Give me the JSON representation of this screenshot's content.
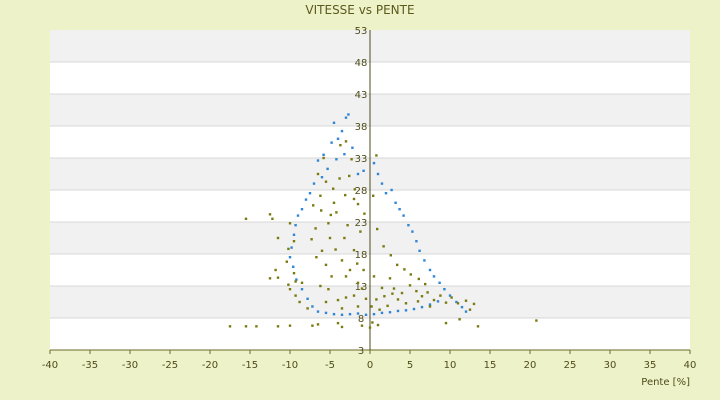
{
  "chart_data": {
    "type": "scatter",
    "title": "VITESSE vs PENTE",
    "xlabel": "Pente [%]",
    "ylabel": "",
    "xlim": [
      -40,
      40
    ],
    "ylim": [
      3,
      53
    ],
    "x_ticks": [
      -40,
      -35,
      -30,
      -25,
      -20,
      -15,
      -10,
      -5,
      0,
      5,
      10,
      15,
      20,
      25,
      30,
      35,
      40
    ],
    "y_ticks": [
      3,
      8,
      13,
      18,
      23,
      28,
      33,
      38,
      43,
      48,
      53
    ],
    "grid": "horizontal alternating bands",
    "legend": "none",
    "series": [
      {
        "color": "#2f86d6",
        "points": [
          [
            -4.5,
            38.5
          ],
          [
            -3.5,
            37.2
          ],
          [
            -3,
            39.3
          ],
          [
            -2.7,
            39.8
          ],
          [
            -4,
            36
          ],
          [
            -4.8,
            35.4
          ],
          [
            -5.8,
            33.5
          ],
          [
            -6.5,
            32.6
          ],
          [
            -6,
            30
          ],
          [
            -5.3,
            31.3
          ],
          [
            -4.2,
            32.8
          ],
          [
            -3.2,
            33.6
          ],
          [
            -2.2,
            34.6
          ],
          [
            -1.5,
            30.5
          ],
          [
            -0.8,
            31
          ],
          [
            0.5,
            32.2
          ],
          [
            1,
            30.5
          ],
          [
            1.5,
            29
          ],
          [
            2,
            27.5
          ],
          [
            2.7,
            28
          ],
          [
            3.2,
            26
          ],
          [
            3.7,
            25
          ],
          [
            4.2,
            24
          ],
          [
            4.8,
            22.5
          ],
          [
            5.3,
            21.5
          ],
          [
            5.8,
            20
          ],
          [
            6.2,
            18.5
          ],
          [
            6.8,
            17
          ],
          [
            7.5,
            15.5
          ],
          [
            8,
            14.5
          ],
          [
            8.7,
            13.5
          ],
          [
            9.3,
            12.5
          ],
          [
            10,
            11.5
          ],
          [
            10.8,
            10.5
          ],
          [
            11.5,
            9.7
          ],
          [
            12,
            9
          ],
          [
            -7,
            29
          ],
          [
            -7.5,
            27.5
          ],
          [
            -8,
            26.5
          ],
          [
            -8.5,
            25
          ],
          [
            -9,
            24
          ],
          [
            -9.3,
            22.5
          ],
          [
            -9.5,
            21
          ],
          [
            -9.8,
            19
          ],
          [
            -10,
            17.5
          ],
          [
            -9.6,
            16
          ],
          [
            -9.2,
            14
          ],
          [
            -8.5,
            12.5
          ],
          [
            -7.8,
            11
          ],
          [
            -7.2,
            9.8
          ],
          [
            -6.5,
            9
          ],
          [
            -5.5,
            8.8
          ],
          [
            -4.5,
            8.6
          ],
          [
            -3.5,
            8.5
          ],
          [
            -2.5,
            8.6
          ],
          [
            -1.5,
            8.7
          ],
          [
            -0.5,
            8.5
          ],
          [
            0.5,
            8.6
          ],
          [
            1.5,
            8.8
          ],
          [
            2.5,
            8.9
          ],
          [
            3.5,
            9.1
          ],
          [
            4.5,
            9.2
          ],
          [
            5.5,
            9.4
          ],
          [
            6.5,
            9.7
          ],
          [
            7.5,
            10.1
          ],
          [
            8.5,
            10.6
          ]
        ]
      },
      {
        "color": "#7a7a10",
        "points": [
          [
            -15.5,
            23.5
          ],
          [
            -12.5,
            24.2
          ],
          [
            -12.2,
            23.5
          ],
          [
            -10,
            22.8
          ],
          [
            -9.5,
            20
          ],
          [
            -11.5,
            20.5
          ],
          [
            -10.2,
            18.8
          ],
          [
            -10.4,
            16.8
          ],
          [
            -11.8,
            15.5
          ],
          [
            -11.5,
            14.3
          ],
          [
            -9.5,
            15
          ],
          [
            -9.3,
            13.7
          ],
          [
            -12.5,
            14.2
          ],
          [
            -10,
            12.5
          ],
          [
            -9.3,
            11.5
          ],
          [
            -10.2,
            13.2
          ],
          [
            -8.5,
            13.5
          ],
          [
            -8.8,
            10.5
          ],
          [
            -7.8,
            9.5
          ],
          [
            -17.5,
            6.7
          ],
          [
            -15.5,
            6.7
          ],
          [
            -14.2,
            6.7
          ],
          [
            -11.5,
            6.7
          ],
          [
            -10,
            6.8
          ],
          [
            -7.2,
            6.8
          ],
          [
            -6.5,
            7
          ],
          [
            -4,
            7.2
          ],
          [
            -3.5,
            6.6
          ],
          [
            -1,
            6.8
          ],
          [
            0,
            6.5
          ],
          [
            0.3,
            7.3
          ],
          [
            1,
            6.9
          ],
          [
            9.5,
            7.2
          ],
          [
            11.2,
            7.8
          ],
          [
            13.5,
            6.7
          ],
          [
            20.8,
            7.6
          ],
          [
            -6.5,
            30.5
          ],
          [
            -5.5,
            29.3
          ],
          [
            -5.8,
            33
          ],
          [
            -3,
            35.6
          ],
          [
            -2.3,
            32.8
          ],
          [
            -3.7,
            35
          ],
          [
            0.8,
            33.4
          ],
          [
            -1.5,
            25.8
          ],
          [
            -2,
            26.6
          ],
          [
            -4.5,
            26
          ],
          [
            -4.2,
            24.5
          ],
          [
            -5,
            20.5
          ],
          [
            -6,
            18.5
          ],
          [
            -6.7,
            17.5
          ],
          [
            -5.5,
            16.3
          ],
          [
            -3.5,
            17
          ],
          [
            -2,
            18.6
          ],
          [
            -4.8,
            14.5
          ],
          [
            -6.2,
            13
          ],
          [
            -5.2,
            12.5
          ],
          [
            -3,
            14.5
          ],
          [
            -1.5,
            13.5
          ],
          [
            -1,
            12.6
          ],
          [
            0.5,
            14.5
          ],
          [
            1.5,
            12.7
          ],
          [
            2.5,
            14.2
          ],
          [
            3,
            12.6
          ],
          [
            4,
            11.9
          ],
          [
            5,
            13.1
          ],
          [
            5.8,
            12.2
          ],
          [
            6.5,
            11.4
          ],
          [
            7.2,
            12
          ],
          [
            8,
            10.8
          ],
          [
            8.8,
            11.5
          ],
          [
            9.5,
            10.4
          ],
          [
            10.2,
            11.2
          ],
          [
            11,
            10.3
          ],
          [
            12,
            10.7
          ],
          [
            12.5,
            9.3
          ],
          [
            13,
            10.2
          ],
          [
            7.5,
            9.8
          ],
          [
            6,
            10.6
          ],
          [
            4.5,
            10.3
          ],
          [
            3.5,
            10.9
          ],
          [
            2.8,
            11.8
          ],
          [
            1.8,
            11.4
          ],
          [
            0.8,
            10.9
          ],
          [
            -0.5,
            11
          ],
          [
            -2,
            11.5
          ],
          [
            -3,
            11.2
          ],
          [
            -4,
            10.8
          ],
          [
            -5.5,
            10.5
          ],
          [
            -3.5,
            9.5
          ],
          [
            -1.5,
            9.8
          ],
          [
            0.2,
            9.8
          ],
          [
            1.2,
            9.3
          ],
          [
            2.2,
            9.9
          ],
          [
            -2.8,
            22.5
          ],
          [
            -3.2,
            20.5
          ],
          [
            -1.2,
            21.5
          ],
          [
            -1.6,
            16.5
          ],
          [
            -0.8,
            15.5
          ],
          [
            -2.5,
            15.5
          ],
          [
            -4.3,
            18.7
          ],
          [
            -6.8,
            22
          ],
          [
            -7.3,
            20.3
          ],
          [
            -6.1,
            24.8
          ],
          [
            -5.2,
            22.8
          ],
          [
            -4.6,
            28.2
          ],
          [
            -3.8,
            29.8
          ],
          [
            -2.6,
            30.2
          ],
          [
            -6.2,
            27.1
          ],
          [
            -7.1,
            25.6
          ],
          [
            -0.7,
            24.3
          ],
          [
            0.9,
            21.9
          ],
          [
            1.7,
            19.2
          ],
          [
            2.6,
            17.8
          ],
          [
            3.4,
            16.3
          ],
          [
            4.3,
            15.6
          ],
          [
            5.1,
            14.8
          ],
          [
            6.1,
            14.1
          ],
          [
            6.9,
            13.3
          ],
          [
            -1.9,
            28.1
          ],
          [
            -3.1,
            27.2
          ],
          [
            -4.9,
            24.1
          ],
          [
            0.4,
            27.1
          ]
        ]
      }
    ]
  }
}
